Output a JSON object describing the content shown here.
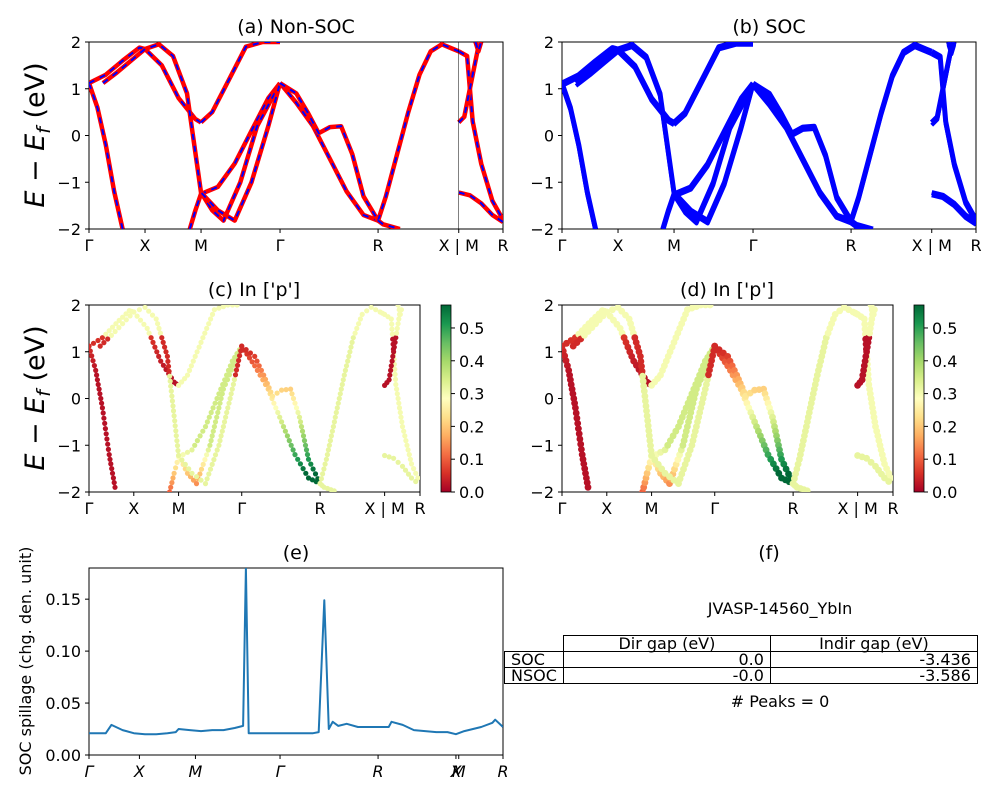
{
  "panels": {
    "a": {
      "title": "(a) Non-SOC"
    },
    "b": {
      "title": "(b) SOC"
    },
    "c": {
      "title": "(c)  In ['p']"
    },
    "d": {
      "title": "(d) In ['p']"
    },
    "e": {
      "title": "(e)"
    },
    "f": {
      "title": "(f)"
    }
  },
  "band_axis": {
    "ylabel": "E − E_f (eV)",
    "ylim": [
      -2,
      2
    ],
    "yticks": [
      "2",
      "1",
      "0",
      "−1",
      "−2"
    ],
    "xticks": [
      "Γ",
      "X",
      "M",
      "Γ",
      "R",
      "X | M",
      "R"
    ]
  },
  "colorbar": {
    "ticks": [
      "0.0",
      "0.1",
      "0.2",
      "0.3",
      "0.4",
      "0.5"
    ],
    "range": [
      0.0,
      0.57
    ],
    "colormap": "RdYlGn"
  },
  "spillage_axis": {
    "ylabel": "SOC spillage (chg. den. unit)",
    "yticks": [
      "0.00",
      "0.05",
      "0.10",
      "0.15"
    ],
    "xticks": [
      "Γ",
      "X",
      "M",
      "Γ",
      "R",
      "X",
      "M",
      "R"
    ]
  },
  "info": {
    "material": "JVASP-14560_YbIn",
    "table": {
      "headers": [
        "Dir gap (eV)",
        "Indir gap (eV)"
      ],
      "rows": [
        {
          "label": "SOC",
          "dir": "0.0",
          "indir": "-3.436"
        },
        {
          "label": "NSOC",
          "dir": "-0.0",
          "indir": "-3.586"
        }
      ]
    },
    "peaks": "# Peaks = 0"
  },
  "colors": {
    "nonsoc_line": "#ff0000",
    "soc_line": "#0000ff",
    "spillage_line": "#1f77b4"
  },
  "chart_data": [
    {
      "type": "line",
      "name": "band-structure-non-soc",
      "xlim": [
        0,
        7.39
      ],
      "ylim": [
        -2,
        2
      ],
      "x_tick_values": [
        0,
        1.0,
        2.0,
        3.41,
        5.16,
        6.6,
        7.39
      ],
      "bands": [
        {
          "x": [
            0,
            0.15,
            0.3,
            0.45,
            0.6
          ],
          "y": [
            1.12,
            0.6,
            -0.2,
            -1.2,
            -2.0
          ]
        },
        {
          "x": [
            0,
            0.3,
            0.6,
            0.9,
            1.0,
            1.3,
            1.6,
            1.9,
            2.0
          ],
          "y": [
            1.12,
            1.3,
            1.6,
            1.88,
            1.85,
            1.5,
            0.8,
            0.35,
            0.28
          ]
        },
        {
          "x": [
            2.0,
            2.2,
            2.5,
            2.8,
            3.1,
            3.41
          ],
          "y": [
            0.28,
            0.5,
            1.2,
            1.9,
            2.0,
            2.0
          ]
        },
        {
          "x": [
            1.8,
            1.9,
            2.0,
            2.3,
            2.6,
            2.9,
            3.2,
            3.41
          ],
          "y": [
            -2.0,
            -1.6,
            -1.25,
            -1.1,
            -0.6,
            0.1,
            0.8,
            1.12
          ]
        },
        {
          "x": [
            2.0,
            2.2,
            2.4,
            2.7,
            3.0,
            3.41
          ],
          "y": [
            -1.22,
            -1.6,
            -1.82,
            -1.0,
            0.2,
            1.12
          ]
        },
        {
          "x": [
            0.25,
            0.5,
            0.75,
            1.0,
            1.25,
            1.5,
            1.75,
            2.0,
            2.3,
            2.6,
            2.9,
            3.2,
            3.41
          ],
          "y": [
            1.12,
            1.35,
            1.6,
            1.85,
            1.95,
            1.7,
            0.9,
            -1.22,
            -1.6,
            -1.82,
            -1.0,
            0.2,
            1.12
          ]
        },
        {
          "x": [
            3.41,
            3.7,
            4.0,
            4.3,
            4.6,
            4.9,
            5.16
          ],
          "y": [
            1.12,
            0.7,
            0.2,
            -0.5,
            -1.2,
            -1.7,
            -1.82
          ]
        },
        {
          "x": [
            3.41,
            3.7,
            3.9,
            4.1,
            4.3,
            4.5,
            4.7,
            4.9,
            5.16
          ],
          "y": [
            1.12,
            0.9,
            0.5,
            0.05,
            0.18,
            0.2,
            -0.4,
            -1.3,
            -1.82
          ]
        },
        {
          "x": [
            5.16,
            5.3,
            5.5,
            5.7,
            5.9,
            6.1,
            6.3,
            6.5,
            6.6
          ],
          "y": [
            -1.82,
            -1.3,
            -0.4,
            0.5,
            1.3,
            1.8,
            1.95,
            1.85,
            1.8
          ]
        },
        {
          "x": [
            5.16,
            5.25,
            5.4,
            5.55
          ],
          "y": [
            -1.82,
            -1.9,
            -1.95,
            -2.0
          ]
        },
        {
          "x": [
            6.6,
            6.75,
            6.85,
            7.0,
            7.2,
            7.39
          ],
          "y": [
            1.8,
            1.7,
            0.3,
            -0.6,
            -1.4,
            -1.8
          ]
        },
        {
          "x": [
            6.6,
            6.8,
            7.0,
            7.2,
            7.39
          ],
          "y": [
            -1.22,
            -1.28,
            -1.45,
            -1.7,
            -1.85
          ]
        },
        {
          "x": [
            6.6,
            6.7,
            6.85,
            6.95
          ],
          "y": [
            0.28,
            0.4,
            1.3,
            1.9
          ]
        },
        {
          "x": [
            6.9,
            6.95,
            7.0
          ],
          "y": [
            2.0,
            1.8,
            2.0
          ]
        }
      ]
    },
    {
      "type": "scatter",
      "name": "p-orbital-projection",
      "ylim": [
        -2,
        2
      ],
      "color_range": [
        0,
        0.57
      ],
      "points_note": "points sampled along the same bands, color = projected In p weight"
    },
    {
      "type": "line",
      "name": "soc-spillage",
      "xlim": [
        0,
        7.39
      ],
      "ylim": [
        0,
        0.18
      ],
      "x_tick_values": [
        0,
        0.9,
        1.9,
        3.41,
        5.16,
        6.55,
        6.6,
        7.39
      ],
      "x": [
        0,
        0.1,
        0.2,
        0.3,
        0.4,
        0.6,
        0.8,
        1.0,
        1.2,
        1.4,
        1.55,
        1.6,
        1.8,
        2.0,
        2.2,
        2.4,
        2.6,
        2.75,
        2.8,
        2.85,
        3.0,
        3.2,
        3.4,
        3.6,
        3.8,
        4.0,
        4.1,
        4.2,
        4.28,
        4.35,
        4.45,
        4.6,
        4.8,
        5.0,
        5.2,
        5.35,
        5.4,
        5.6,
        5.8,
        6.0,
        6.2,
        6.4,
        6.55,
        6.7,
        7.0,
        7.2,
        7.25,
        7.39
      ],
      "y": [
        0.021,
        0.021,
        0.021,
        0.021,
        0.029,
        0.024,
        0.021,
        0.02,
        0.02,
        0.021,
        0.022,
        0.025,
        0.024,
        0.023,
        0.024,
        0.024,
        0.026,
        0.028,
        0.18,
        0.021,
        0.021,
        0.021,
        0.021,
        0.021,
        0.021,
        0.021,
        0.022,
        0.149,
        0.025,
        0.032,
        0.028,
        0.03,
        0.027,
        0.027,
        0.027,
        0.027,
        0.032,
        0.029,
        0.024,
        0.023,
        0.022,
        0.022,
        0.02,
        0.023,
        0.027,
        0.031,
        0.034,
        0.027
      ]
    }
  ]
}
